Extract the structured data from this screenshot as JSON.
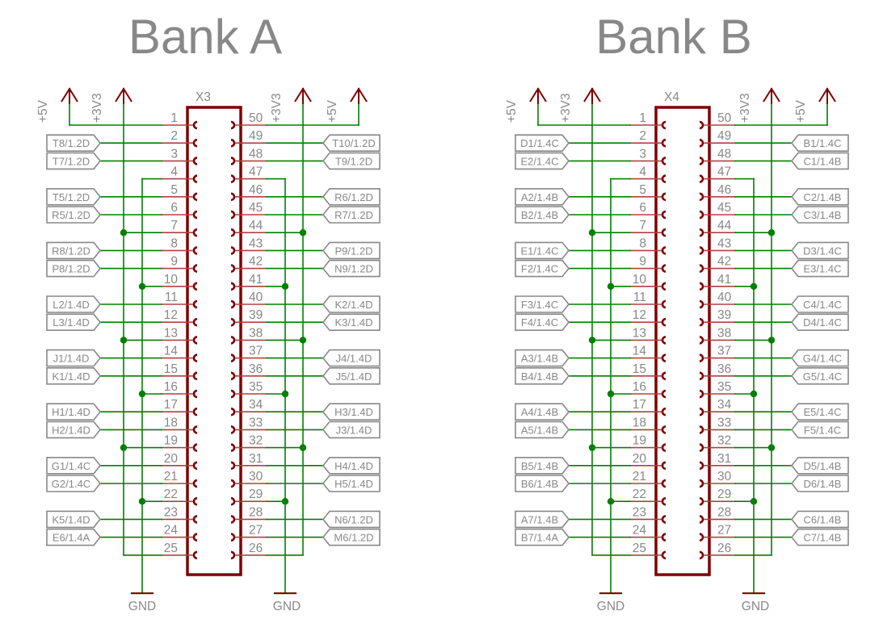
{
  "colors": {
    "wire": "#008000",
    "pin": "#b04040",
    "body": "#7f0000",
    "text": "#888888",
    "frame": "#888888"
  },
  "banks": [
    {
      "title": "Bank A",
      "connector": "X3",
      "power_left": [
        "+5V",
        "+3V3"
      ],
      "power_right": [
        "+3V3",
        "+5V"
      ],
      "gnd": [
        "GND",
        "GND"
      ],
      "left": {
        "2": "T8/1.2D",
        "3": "T7/1.2D",
        "5": "T5/1.2D",
        "6": "R5/1.2D",
        "8": "R8/1.2D",
        "9": "P8/1.2D",
        "11": "L2/1.4D",
        "12": "L3/1.4D",
        "14": "J1/1.4D",
        "15": "K1/1.4D",
        "17": "H1/1.4D",
        "18": "H2/1.4D",
        "20": "G1/1.4C",
        "21": "G2/1.4C",
        "23": "K5/1.4D",
        "24": "E6/1.4A"
      },
      "right": {
        "49": "T10/1.2D",
        "48": "T9/1.2D",
        "46": "R6/1.2D",
        "45": "R7/1.2D",
        "43": "P9/1.2D",
        "42": "N9/1.2D",
        "40": "K2/1.4D",
        "39": "K3/1.4D",
        "37": "J4/1.4D",
        "36": "J5/1.4D",
        "34": "H3/1.4D",
        "33": "J3/1.4D",
        "31": "H4/1.4D",
        "30": "H5/1.4D",
        "28": "N6/1.2D",
        "27": "M6/1.2D"
      }
    },
    {
      "title": "Bank B",
      "connector": "X4",
      "power_left": [
        "+5V",
        "+3V3"
      ],
      "power_right": [
        "+3V3",
        "+5V"
      ],
      "gnd": [
        "GND",
        "GND"
      ],
      "left": {
        "2": "D1/1.4C",
        "3": "E2/1.4C",
        "5": "A2/1.4B",
        "6": "B2/1.4B",
        "8": "E1/1.4C",
        "9": "F2/1.4C",
        "11": "F3/1.4C",
        "12": "F4/1.4C",
        "14": "A3/1.4B",
        "15": "B4/1.4B",
        "17": "A4/1.4B",
        "18": "A5/1.4B",
        "20": "B5/1.4B",
        "21": "B6/1.4B",
        "23": "A7/1.4B",
        "24": "B7/1.4A"
      },
      "right": {
        "49": "B1/1.4C",
        "48": "C1/1.4B",
        "46": "C2/1.4B",
        "45": "C3/1.4B",
        "43": "D3/1.4C",
        "42": "E3/1.4C",
        "40": "C4/1.4C",
        "39": "D4/1.4C",
        "37": "G4/1.4C",
        "36": "G5/1.4C",
        "34": "E5/1.4C",
        "33": "F5/1.4C",
        "31": "D5/1.4B",
        "30": "D6/1.4B",
        "28": "C6/1.4B",
        "27": "C7/1.4B"
      }
    }
  ]
}
